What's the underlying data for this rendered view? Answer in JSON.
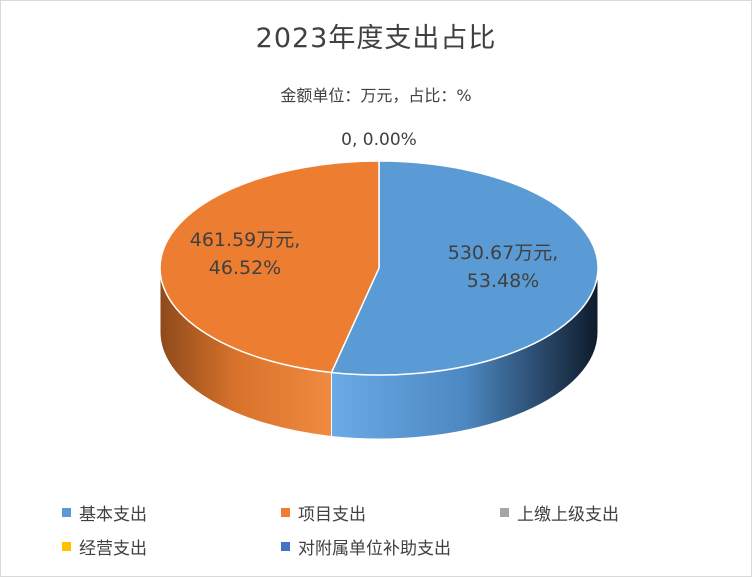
{
  "chart_data": {
    "type": "pie",
    "title": "2023年度支出占比",
    "subtitle": "金额单位：万元，占比：%",
    "unit": "万元",
    "categories": [
      "基本支出",
      "项目支出",
      "上缴上级支出",
      "经营支出",
      "对附属单位补助支出"
    ],
    "values": [
      530.67,
      461.59,
      0,
      0,
      0
    ],
    "percents": [
      53.48,
      46.52,
      0,
      0,
      0
    ],
    "colors": [
      "#5B9BD5",
      "#ED7D31",
      "#A5A5A5",
      "#FFC000",
      "#4472C4"
    ],
    "data_labels": [
      {
        "line1": "530.67万元,",
        "line2": "53.48%"
      },
      {
        "line1": "461.59万元,",
        "line2": "46.52%"
      },
      {
        "line1": "0, 0.00%"
      }
    ],
    "legend_position": "bottom",
    "style": "3d"
  }
}
